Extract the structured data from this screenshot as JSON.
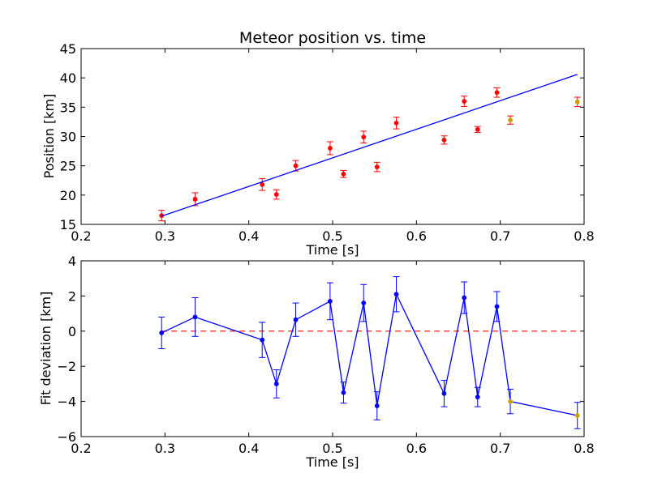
{
  "chart_data": [
    {
      "type": "scatter",
      "title": "Meteor position vs. time",
      "xlabel": "Time [s]",
      "ylabel": "Position [km]",
      "xlim": [
        0.2,
        0.8
      ],
      "ylim": [
        15,
        45
      ],
      "xticks": [
        "0.2",
        "0.3",
        "0.4",
        "0.5",
        "0.6",
        "0.7",
        "0.8"
      ],
      "yticks": [
        "15",
        "20",
        "25",
        "30",
        "35",
        "40",
        "45"
      ],
      "grid": false,
      "legend": "none",
      "series": [
        {
          "kind": "errorbar-points",
          "color": "#ff0000",
          "points": [
            {
              "x": 0.296,
              "y": 16.5,
              "err": 0.9
            },
            {
              "x": 0.336,
              "y": 19.3,
              "err": 1.1
            },
            {
              "x": 0.416,
              "y": 21.8,
              "err": 1.0
            },
            {
              "x": 0.433,
              "y": 20.1,
              "err": 0.8
            },
            {
              "x": 0.456,
              "y": 25.0,
              "err": 0.9
            },
            {
              "x": 0.497,
              "y": 28.0,
              "err": 1.1
            },
            {
              "x": 0.513,
              "y": 23.6,
              "err": 0.6
            },
            {
              "x": 0.537,
              "y": 29.9,
              "err": 1.0
            },
            {
              "x": 0.553,
              "y": 24.8,
              "err": 0.8
            },
            {
              "x": 0.576,
              "y": 32.3,
              "err": 1.0
            },
            {
              "x": 0.633,
              "y": 29.4,
              "err": 0.7
            },
            {
              "x": 0.657,
              "y": 36.0,
              "err": 0.9
            },
            {
              "x": 0.673,
              "y": 31.2,
              "err": 0.5
            },
            {
              "x": 0.696,
              "y": 37.5,
              "err": 0.8
            }
          ]
        },
        {
          "kind": "errorbar-points",
          "color": "#ff0000",
          "point_fill": "#c8a000",
          "points": [
            {
              "x": 0.712,
              "y": 32.8,
              "err": 0.7
            },
            {
              "x": 0.792,
              "y": 35.9,
              "err": 0.8
            }
          ]
        },
        {
          "kind": "line",
          "color": "#0000ff",
          "points": [
            {
              "x": 0.296,
              "y": 16.4
            },
            {
              "x": 0.792,
              "y": 40.6
            }
          ]
        }
      ]
    },
    {
      "type": "line",
      "title": "",
      "xlabel": "Time [s]",
      "ylabel": "Fit deviation [km]",
      "xlim": [
        0.2,
        0.8
      ],
      "ylim": [
        -6,
        4
      ],
      "xticks": [
        "0.2",
        "0.3",
        "0.4",
        "0.5",
        "0.6",
        "0.7",
        "0.8"
      ],
      "yticks": [
        "−6",
        "−4",
        "−2",
        "0",
        "2",
        "4"
      ],
      "grid": false,
      "legend": "none",
      "reference_line": {
        "y": 0,
        "color": "#ff0000",
        "style": "dashed"
      },
      "series": [
        {
          "kind": "errorbar-line",
          "color": "#0000ff",
          "points": [
            {
              "x": 0.296,
              "y": -0.1,
              "err": 0.9
            },
            {
              "x": 0.336,
              "y": 0.8,
              "err": 1.1
            },
            {
              "x": 0.416,
              "y": -0.5,
              "err": 1.0
            },
            {
              "x": 0.433,
              "y": -3.0,
              "err": 0.8
            },
            {
              "x": 0.456,
              "y": 0.65,
              "err": 0.95
            },
            {
              "x": 0.497,
              "y": 1.7,
              "err": 1.05
            },
            {
              "x": 0.513,
              "y": -3.5,
              "err": 0.6
            },
            {
              "x": 0.537,
              "y": 1.6,
              "err": 1.05
            },
            {
              "x": 0.553,
              "y": -4.25,
              "err": 0.8
            },
            {
              "x": 0.576,
              "y": 2.1,
              "err": 1.0
            },
            {
              "x": 0.633,
              "y": -3.55,
              "err": 0.75
            },
            {
              "x": 0.657,
              "y": 1.9,
              "err": 0.9
            },
            {
              "x": 0.673,
              "y": -3.75,
              "err": 0.55
            },
            {
              "x": 0.696,
              "y": 1.4,
              "err": 0.85
            },
            {
              "x": 0.712,
              "y": -4.0,
              "err": 0.7,
              "fill": "#c8a000"
            },
            {
              "x": 0.792,
              "y": -4.8,
              "err": 0.75,
              "fill": "#c8a000"
            }
          ]
        }
      ]
    }
  ]
}
